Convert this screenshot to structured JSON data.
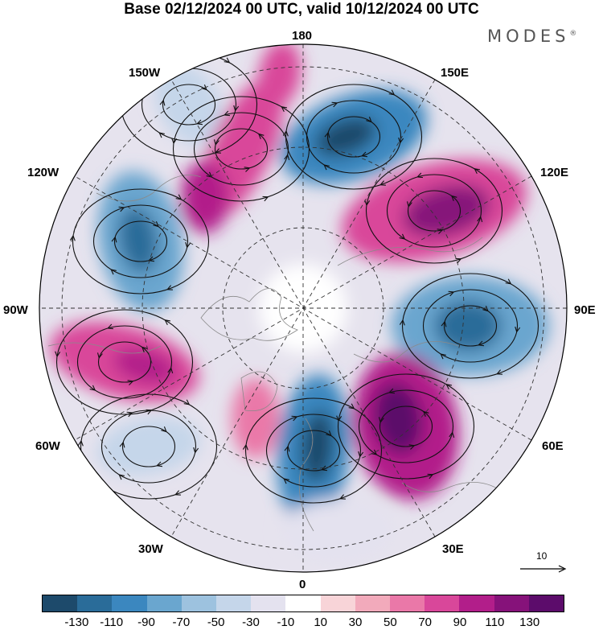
{
  "title": "Base 02/12/2024 00 UTC, valid 10/12/2024 00 UTC",
  "brand": "MODES",
  "brand_mark": "®",
  "labels": {
    "lon_180": "180",
    "lon_150w": "150W",
    "lon_150e": "150E",
    "lon_120w": "120W",
    "lon_120e": "120E",
    "lon_90w": "90W",
    "lon_90e": "90E",
    "lon_60w": "60W",
    "lon_60e": "60E",
    "lon_30w": "30W",
    "lon_30e": "30E",
    "lon_0": "0"
  },
  "reference_vector": "10",
  "colorbar": {
    "colors": [
      "#1d4a6b",
      "#2a6c99",
      "#3b87bf",
      "#6aa6cf",
      "#9dc2df",
      "#c5d6ea",
      "#e4e2ef",
      "#ffffff",
      "#f8d4d8",
      "#f2aabb",
      "#ea78a8",
      "#d9479a",
      "#b21e8a",
      "#86127a",
      "#5c0c6b"
    ],
    "ticks": [
      "-130",
      "-110",
      "-90",
      "-70",
      "-50",
      "-30",
      "-10",
      "10",
      "30",
      "50",
      "70",
      "90",
      "110",
      "130"
    ]
  }
}
